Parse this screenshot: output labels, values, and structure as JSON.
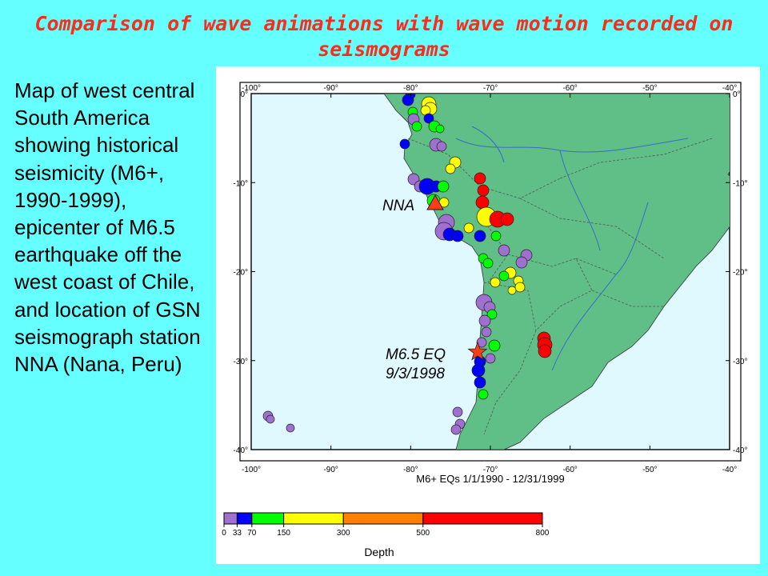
{
  "slide": {
    "title": "Comparison of wave animations with wave motion recorded on seismograms",
    "description": "Map of west central South America showing historical seismicity (M6+, 1990-1999), epicenter of M6.5 earthquake off the west coast of Chile, and location of GSN seismograph station NNA (Nana, Peru)"
  },
  "map": {
    "lon_ticks": [
      "-100°",
      "-90°",
      "-80°",
      "-70°",
      "-60°",
      "-50°",
      "-40°"
    ],
    "lat_ticks": [
      "0°",
      "-10°",
      "-20°",
      "-30°",
      "-40°"
    ],
    "station_label": "NNA",
    "epicenter_label_line1": "M6.5 EQ",
    "epicenter_label_line2": "9/3/1998",
    "caption": "M6+ EQs 1/1/1990 - 12/31/1999",
    "colors": {
      "ocean": "#e0f8ff",
      "land": "#5fbf87",
      "station": "#ff3b1a",
      "epicenter": "#ff3b1a"
    }
  },
  "legend": {
    "tick_labels": [
      "0",
      "33",
      "70",
      "150",
      "300",
      "500",
      "800"
    ],
    "title": "Depth",
    "colors": [
      "#a070d0",
      "#0000ff",
      "#00ff00",
      "#ffff00",
      "#ff8000",
      "#ff0000"
    ]
  }
}
